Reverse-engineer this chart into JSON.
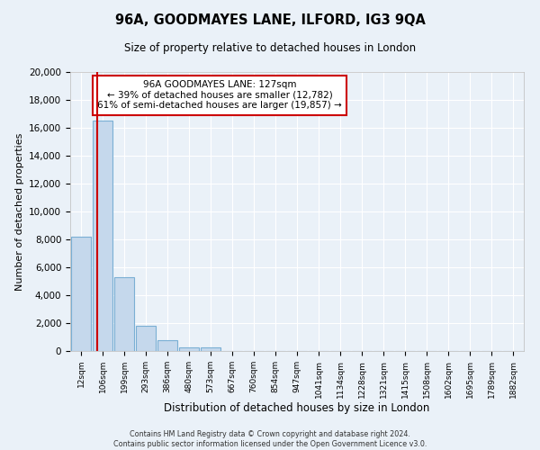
{
  "title": "96A, GOODMAYES LANE, ILFORD, IG3 9QA",
  "subtitle": "Size of property relative to detached houses in London",
  "xlabel": "Distribution of detached houses by size in London",
  "ylabel": "Number of detached properties",
  "bar_labels": [
    "12sqm",
    "106sqm",
    "199sqm",
    "293sqm",
    "386sqm",
    "480sqm",
    "573sqm",
    "667sqm",
    "760sqm",
    "854sqm",
    "947sqm",
    "1041sqm",
    "1134sqm",
    "1228sqm",
    "1321sqm",
    "1415sqm",
    "1508sqm",
    "1602sqm",
    "1695sqm",
    "1789sqm",
    "1882sqm"
  ],
  "bar_values": [
    8200,
    16500,
    5300,
    1800,
    800,
    280,
    230,
    0,
    0,
    0,
    0,
    0,
    0,
    0,
    0,
    0,
    0,
    0,
    0,
    0,
    0
  ],
  "bar_color": "#c5d8ec",
  "bar_edge_color": "#7aafd4",
  "property_line_color": "#cc0000",
  "annotation_title": "96A GOODMAYES LANE: 127sqm",
  "annotation_line1": "← 39% of detached houses are smaller (12,782)",
  "annotation_line2": "61% of semi-detached houses are larger (19,857) →",
  "annotation_box_color": "#ffffff",
  "annotation_box_edge": "#cc0000",
  "ylim": [
    0,
    20000
  ],
  "yticks": [
    0,
    2000,
    4000,
    6000,
    8000,
    10000,
    12000,
    14000,
    16000,
    18000,
    20000
  ],
  "bg_color": "#eaf1f8",
  "plot_bg_color": "#eaf1f8",
  "grid_color": "#ffffff",
  "footer_line1": "Contains HM Land Registry data © Crown copyright and database right 2024.",
  "footer_line2": "Contains public sector information licensed under the Open Government Licence v3.0."
}
